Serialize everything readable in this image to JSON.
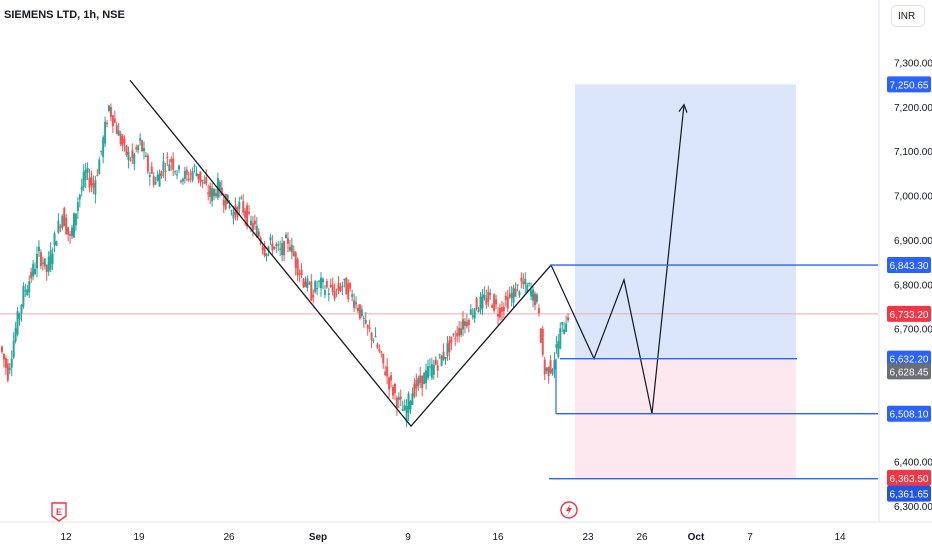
{
  "header": {
    "symbol_label": "SIEMENS LTD, 1h, NSE",
    "currency_button": "INR"
  },
  "colors": {
    "up": "#26a69a",
    "down": "#ef5350",
    "drawing": "#131722",
    "level_line": "#2962ff",
    "target_zone": "#dbe6fb",
    "stop_zone": "#fce8ee",
    "label_blue": "#2962ff",
    "label_red": "#f23645",
    "label_gray": "#6b6e75",
    "label_dark_blue": "#2356e0"
  },
  "icons": {
    "earnings_marker": "E",
    "dividend_marker": "bolt"
  },
  "chart_data": {
    "type": "candlestick",
    "title": "SIEMENS LTD, 1h, NSE",
    "currency": "INR",
    "y_axis": {
      "range": [
        6260,
        7380
      ],
      "ticks": [
        6300,
        6400,
        6700,
        6800,
        6900,
        7000,
        7100,
        7200,
        7300
      ],
      "tick_labels": [
        "6,300.00",
        "6,400.00",
        "6,700.00",
        "6,800.00",
        "6,900.00",
        "7,000.00",
        "7,100.00",
        "7,200.00",
        "7,300.00"
      ]
    },
    "x_axis": {
      "tick_labels": [
        "12",
        "19",
        "26",
        "Sep",
        "9",
        "16",
        "23",
        "26",
        "Oct",
        "7",
        "14"
      ]
    },
    "price_labels": [
      {
        "value": 7250.65,
        "text": "7,250.65",
        "color": "blue"
      },
      {
        "value": 6843.3,
        "text": "6,843.30",
        "color": "blue"
      },
      {
        "value": 6733.2,
        "text": "6,733.20",
        "color": "red"
      },
      {
        "value": 6632.2,
        "text": "6,632.20",
        "color": "blue"
      },
      {
        "value": 6628.45,
        "text": "6,628.45",
        "color": "gray"
      },
      {
        "value": 6508.1,
        "text": "6,508.10",
        "color": "blue"
      },
      {
        "value": 6363.5,
        "text": "6,363.50",
        "color": "red"
      },
      {
        "value": 6361.65,
        "text": "6,361.65",
        "color": "darkblue"
      }
    ],
    "horizontal_levels": [
      6843.3,
      6632.2,
      6508.1,
      6361.65
    ],
    "current_price": 6733.2,
    "position_tool": {
      "entry": 6632.2,
      "target": 7250.65,
      "stop": 6363.5
    },
    "zigzag_pattern": [
      7260,
      6480,
      6843.3
    ],
    "projection_path": [
      6843.3,
      6632.2,
      6810,
      6508.1,
      7205
    ],
    "trend": [
      6660,
      6600,
      6700,
      6780,
      6820,
      6870,
      6830,
      6900,
      6960,
      6900,
      6990,
      7050,
      7020,
      7100,
      7200,
      7150,
      7100,
      7080,
      7120,
      7060,
      7030,
      7070,
      7080,
      7050,
      7040,
      7060,
      7030,
      7000,
      7020,
      6990,
      6960,
      6980,
      6940,
      6920,
      6880,
      6890,
      6870,
      6900,
      6850,
      6810,
      6780,
      6800,
      6790,
      6780,
      6800,
      6780,
      6750,
      6700,
      6680,
      6630,
      6580,
      6540,
      6510,
      6560,
      6580,
      6600,
      6620,
      6640,
      6670,
      6700,
      6720,
      6750,
      6760,
      6770,
      6740,
      6760,
      6780,
      6800,
      6790,
      6760,
      6600,
      6620,
      6690,
      6733
    ]
  }
}
